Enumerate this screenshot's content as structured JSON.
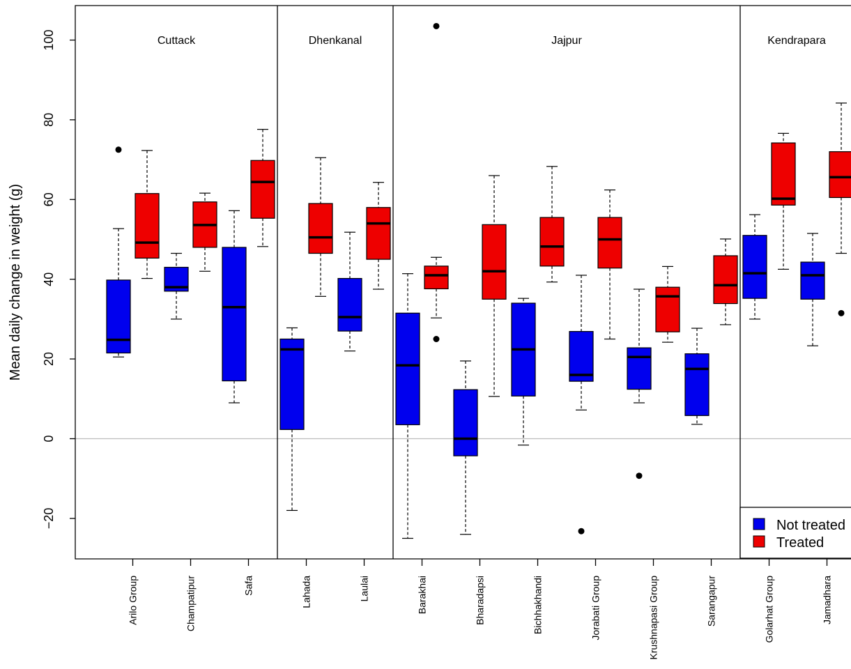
{
  "chart_data": {
    "type": "boxplot",
    "title": "",
    "xlabel": "",
    "ylabel": "Mean daily change in weight (g)",
    "ylim": [
      -30,
      108
    ],
    "yticks": [
      -20,
      0,
      20,
      40,
      60,
      80,
      100
    ],
    "reference_line": 0,
    "colors": {
      "not_treated": "#0000ee",
      "treated": "#ee0000"
    },
    "legend": {
      "placement": "bottom-right",
      "entries": [
        {
          "key": "not_treated",
          "label": "Not treated"
        },
        {
          "key": "treated",
          "label": "Treated"
        }
      ]
    },
    "groups": [
      {
        "name": "Cuttack",
        "categories": [
          "Arilo Group",
          "Champatipur",
          "Safa"
        ]
      },
      {
        "name": "Dhenkanal",
        "categories": [
          "Lahada",
          "Laulai"
        ]
      },
      {
        "name": "Jajpur",
        "categories": [
          "Barakhai",
          "Bharadapsi",
          "Bichhakhandi",
          "Jorabati Group",
          "Krushnapasi Group",
          "Sarangapur"
        ]
      },
      {
        "name": "Kendrapara",
        "categories": [
          "Golarhat Group",
          "Jamadhara"
        ]
      }
    ],
    "boxes": [
      {
        "category": "Arilo Group",
        "series": "not_treated",
        "whisker_low": 20.5,
        "q1": 21.5,
        "median": 24.8,
        "q3": 39.8,
        "whisker_high": 52.7,
        "outliers": [
          72.5
        ]
      },
      {
        "category": "Arilo Group",
        "series": "treated",
        "whisker_low": 40.2,
        "q1": 45.3,
        "median": 49.2,
        "q3": 61.5,
        "whisker_high": 72.3,
        "outliers": []
      },
      {
        "category": "Champatipur",
        "series": "not_treated",
        "whisker_low": 30.0,
        "q1": 37.0,
        "median": 38.0,
        "q3": 43.0,
        "whisker_high": 46.5,
        "outliers": []
      },
      {
        "category": "Champatipur",
        "series": "treated",
        "whisker_low": 42.0,
        "q1": 48.0,
        "median": 53.6,
        "q3": 59.4,
        "whisker_high": 61.6,
        "outliers": []
      },
      {
        "category": "Safa",
        "series": "not_treated",
        "whisker_low": 9.0,
        "q1": 14.5,
        "median": 33.0,
        "q3": 48.0,
        "whisker_high": 57.2,
        "outliers": []
      },
      {
        "category": "Safa",
        "series": "treated",
        "whisker_low": 48.2,
        "q1": 55.3,
        "median": 64.4,
        "q3": 69.8,
        "whisker_high": 77.6,
        "outliers": []
      },
      {
        "category": "Lahada",
        "series": "not_treated",
        "whisker_low": -18.0,
        "q1": 2.3,
        "median": 22.4,
        "q3": 25.0,
        "whisker_high": 27.8,
        "outliers": []
      },
      {
        "category": "Lahada",
        "series": "treated",
        "whisker_low": 35.7,
        "q1": 46.5,
        "median": 50.5,
        "q3": 59.0,
        "whisker_high": 70.5,
        "outliers": []
      },
      {
        "category": "Laulai",
        "series": "not_treated",
        "whisker_low": 22.0,
        "q1": 27.0,
        "median": 30.5,
        "q3": 40.2,
        "whisker_high": 51.8,
        "outliers": []
      },
      {
        "category": "Laulai",
        "series": "treated",
        "whisker_low": 37.5,
        "q1": 45.0,
        "median": 54.0,
        "q3": 58.0,
        "whisker_high": 64.3,
        "outliers": []
      },
      {
        "category": "Barakhai",
        "series": "not_treated",
        "whisker_low": -25.0,
        "q1": 3.5,
        "median": 18.4,
        "q3": 31.5,
        "whisker_high": 41.4,
        "outliers": []
      },
      {
        "category": "Barakhai",
        "series": "treated",
        "whisker_low": 30.3,
        "q1": 37.6,
        "median": 41.0,
        "q3": 43.3,
        "whisker_high": 45.5,
        "outliers": [
          103.5,
          25.0
        ]
      },
      {
        "category": "Bharadapsi",
        "series": "not_treated",
        "whisker_low": -24.0,
        "q1": -4.3,
        "median": 0.0,
        "q3": 12.3,
        "whisker_high": 19.5,
        "outliers": []
      },
      {
        "category": "Bharadapsi",
        "series": "treated",
        "whisker_low": 10.6,
        "q1": 35.0,
        "median": 42.0,
        "q3": 53.7,
        "whisker_high": 66.0,
        "outliers": []
      },
      {
        "category": "Bichhakhandi",
        "series": "not_treated",
        "whisker_low": -1.6,
        "q1": 10.7,
        "median": 22.4,
        "q3": 34.0,
        "whisker_high": 35.2,
        "outliers": []
      },
      {
        "category": "Bichhakhandi",
        "series": "treated",
        "whisker_low": 39.3,
        "q1": 43.3,
        "median": 48.2,
        "q3": 55.5,
        "whisker_high": 68.3,
        "outliers": []
      },
      {
        "category": "Jorabati Group",
        "series": "not_treated",
        "whisker_low": 7.2,
        "q1": 14.4,
        "median": 16.0,
        "q3": 26.9,
        "whisker_high": 41.0,
        "outliers": [
          -23.2
        ]
      },
      {
        "category": "Jorabati Group",
        "series": "treated",
        "whisker_low": 25.0,
        "q1": 42.8,
        "median": 50.0,
        "q3": 55.5,
        "whisker_high": 62.4,
        "outliers": []
      },
      {
        "category": "Krushnapasi Group",
        "series": "not_treated",
        "whisker_low": 9.0,
        "q1": 12.4,
        "median": 20.5,
        "q3": 22.8,
        "whisker_high": 37.5,
        "outliers": [
          -9.3
        ]
      },
      {
        "category": "Krushnapasi Group",
        "series": "treated",
        "whisker_low": 24.2,
        "q1": 26.8,
        "median": 35.7,
        "q3": 38.0,
        "whisker_high": 43.2,
        "outliers": []
      },
      {
        "category": "Sarangapur",
        "series": "not_treated",
        "whisker_low": 3.6,
        "q1": 5.8,
        "median": 17.5,
        "q3": 21.3,
        "whisker_high": 27.7,
        "outliers": []
      },
      {
        "category": "Sarangapur",
        "series": "treated",
        "whisker_low": 28.6,
        "q1": 33.9,
        "median": 38.5,
        "q3": 45.9,
        "whisker_high": 50.1,
        "outliers": []
      },
      {
        "category": "Golarhat Group",
        "series": "not_treated",
        "whisker_low": 30.0,
        "q1": 35.2,
        "median": 41.5,
        "q3": 51.0,
        "whisker_high": 56.2,
        "outliers": []
      },
      {
        "category": "Golarhat Group",
        "series": "treated",
        "whisker_low": 42.5,
        "q1": 58.6,
        "median": 60.2,
        "q3": 74.2,
        "whisker_high": 76.6,
        "outliers": []
      },
      {
        "category": "Jamadhara",
        "series": "not_treated",
        "whisker_low": 23.3,
        "q1": 35.0,
        "median": 41.0,
        "q3": 44.3,
        "whisker_high": 51.5,
        "outliers": []
      },
      {
        "category": "Jamadhara",
        "series": "treated",
        "whisker_low": 46.5,
        "q1": 60.5,
        "median": 65.6,
        "q3": 72.0,
        "whisker_high": 84.2,
        "outliers": [
          31.5
        ]
      }
    ]
  }
}
